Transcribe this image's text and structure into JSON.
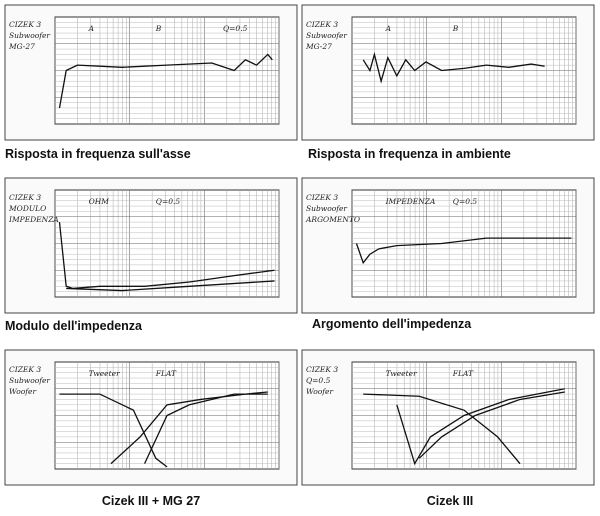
{
  "panels": [
    {
      "caption": "Risposta in frequenza sull'asse",
      "labels": [
        "CIZEK 3",
        "Subwoofer",
        "MG-27",
        "A",
        "B",
        "Q=0.5"
      ]
    },
    {
      "caption": "Risposta in frequenza in ambiente",
      "labels": [
        "CIZEK 3",
        "Subwoofer",
        "MG-27",
        "A",
        "B"
      ]
    },
    {
      "caption": "Modulo dell'impedenza",
      "labels": [
        "CIZEK 3",
        "MODULO",
        "IMPEDENZA",
        "OHM",
        "Q=0.5"
      ]
    },
    {
      "caption": "Argomento dell'impedenza",
      "labels": [
        "CIZEK 3",
        "Subwoofer",
        "ARGOMENTO",
        "IMPEDENZA",
        "Q=0.5"
      ]
    },
    {
      "caption": "Cizek III + MG 27",
      "labels": [
        "CIZEK 3",
        "Subwoofer",
        "Woofer",
        "Tweeter",
        "FLAT"
      ]
    },
    {
      "caption": "Cizek III",
      "labels": [
        "CIZEK 3",
        "Q=0.5",
        "Woofer",
        "Tweeter",
        "FLAT"
      ]
    }
  ]
}
